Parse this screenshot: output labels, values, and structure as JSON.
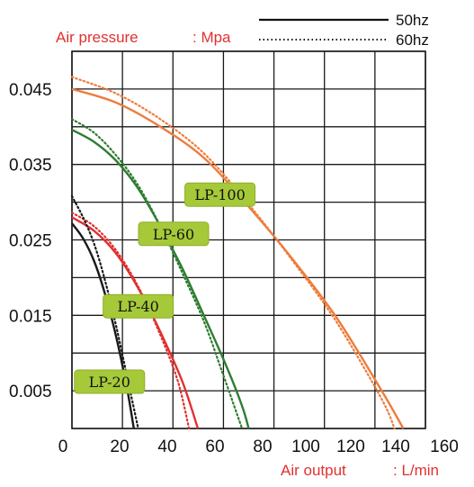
{
  "chart_data": {
    "type": "line",
    "title": "",
    "ylabel": "Air pressure",
    "yunit": ": Mpa",
    "xlabel": "Air output",
    "xunit": ": L/min",
    "xlim": [
      0,
      160
    ],
    "ylim": [
      0,
      0.05
    ],
    "xticks": [
      "0",
      "20",
      "40",
      "60",
      "80",
      "100",
      "120",
      "140",
      "160"
    ],
    "yticks": [
      "0.045",
      "0.035",
      "0.025",
      "0.015",
      "0.005"
    ],
    "ytick_values": [
      0.045,
      0.035,
      0.025,
      0.015,
      0.005
    ],
    "grid": true,
    "legend": {
      "position": "top-right",
      "entries": [
        {
          "label": "50hz",
          "style": "solid"
        },
        {
          "label": "60hz",
          "style": "dotted"
        }
      ]
    },
    "series": [
      {
        "model": "LP-100",
        "color": "#ee7d3c",
        "tag_at": [
          67,
          0.031
        ],
        "hz50": [
          [
            0,
            0.045
          ],
          [
            20,
            0.0432
          ],
          [
            40,
            0.04
          ],
          [
            60,
            0.0358
          ],
          [
            80,
            0.0294
          ],
          [
            100,
            0.0224
          ],
          [
            120,
            0.0146
          ],
          [
            140,
            0.0051
          ],
          [
            150,
            0.0
          ]
        ],
        "hz60": [
          [
            0,
            0.0466
          ],
          [
            20,
            0.0444
          ],
          [
            40,
            0.041
          ],
          [
            60,
            0.0364
          ],
          [
            80,
            0.0297
          ],
          [
            100,
            0.0222
          ],
          [
            120,
            0.014
          ],
          [
            140,
            0.004
          ],
          [
            146,
            0.0
          ]
        ]
      },
      {
        "model": "LP-60",
        "color": "#2e7d32",
        "tag_at": [
          46,
          0.0258
        ],
        "hz50": [
          [
            0,
            0.0396
          ],
          [
            10,
            0.038
          ],
          [
            20,
            0.0355
          ],
          [
            30,
            0.0318
          ],
          [
            40,
            0.0268
          ],
          [
            50,
            0.0212
          ],
          [
            60,
            0.0148
          ],
          [
            70,
            0.0082
          ],
          [
            77,
            0.003
          ],
          [
            80,
            0.0
          ]
        ],
        "hz60": [
          [
            0,
            0.041
          ],
          [
            10,
            0.0392
          ],
          [
            20,
            0.0362
          ],
          [
            30,
            0.0322
          ],
          [
            40,
            0.0268
          ],
          [
            50,
            0.0206
          ],
          [
            60,
            0.014
          ],
          [
            68,
            0.0075
          ],
          [
            74,
            0.0025
          ],
          [
            77,
            0.0
          ]
        ]
      },
      {
        "model": "LP-40",
        "color": "#e0312f",
        "tag_at": [
          30,
          0.0162
        ],
        "hz50": [
          [
            0,
            0.028
          ],
          [
            10,
            0.0262
          ],
          [
            20,
            0.0232
          ],
          [
            30,
            0.0186
          ],
          [
            40,
            0.0128
          ],
          [
            50,
            0.0062
          ],
          [
            57,
            0.0
          ]
        ],
        "hz60": [
          [
            0,
            0.0286
          ],
          [
            10,
            0.0268
          ],
          [
            20,
            0.0236
          ],
          [
            30,
            0.0188
          ],
          [
            40,
            0.0124
          ],
          [
            48,
            0.0062
          ],
          [
            53,
            0.0
          ]
        ]
      },
      {
        "model": "LP-20",
        "color": "#1a1a1a",
        "tag_at": [
          17,
          0.0062
        ],
        "hz50": [
          [
            0,
            0.0272
          ],
          [
            5,
            0.0252
          ],
          [
            10,
            0.0222
          ],
          [
            15,
            0.0178
          ],
          [
            20,
            0.0122
          ],
          [
            25,
            0.0052
          ],
          [
            28,
            0.0
          ]
        ],
        "hz60": [
          [
            0,
            0.0308
          ],
          [
            5,
            0.028
          ],
          [
            10,
            0.0245
          ],
          [
            15,
            0.0196
          ],
          [
            20,
            0.0136
          ],
          [
            25,
            0.0068
          ],
          [
            30,
            0.0
          ]
        ]
      }
    ]
  }
}
